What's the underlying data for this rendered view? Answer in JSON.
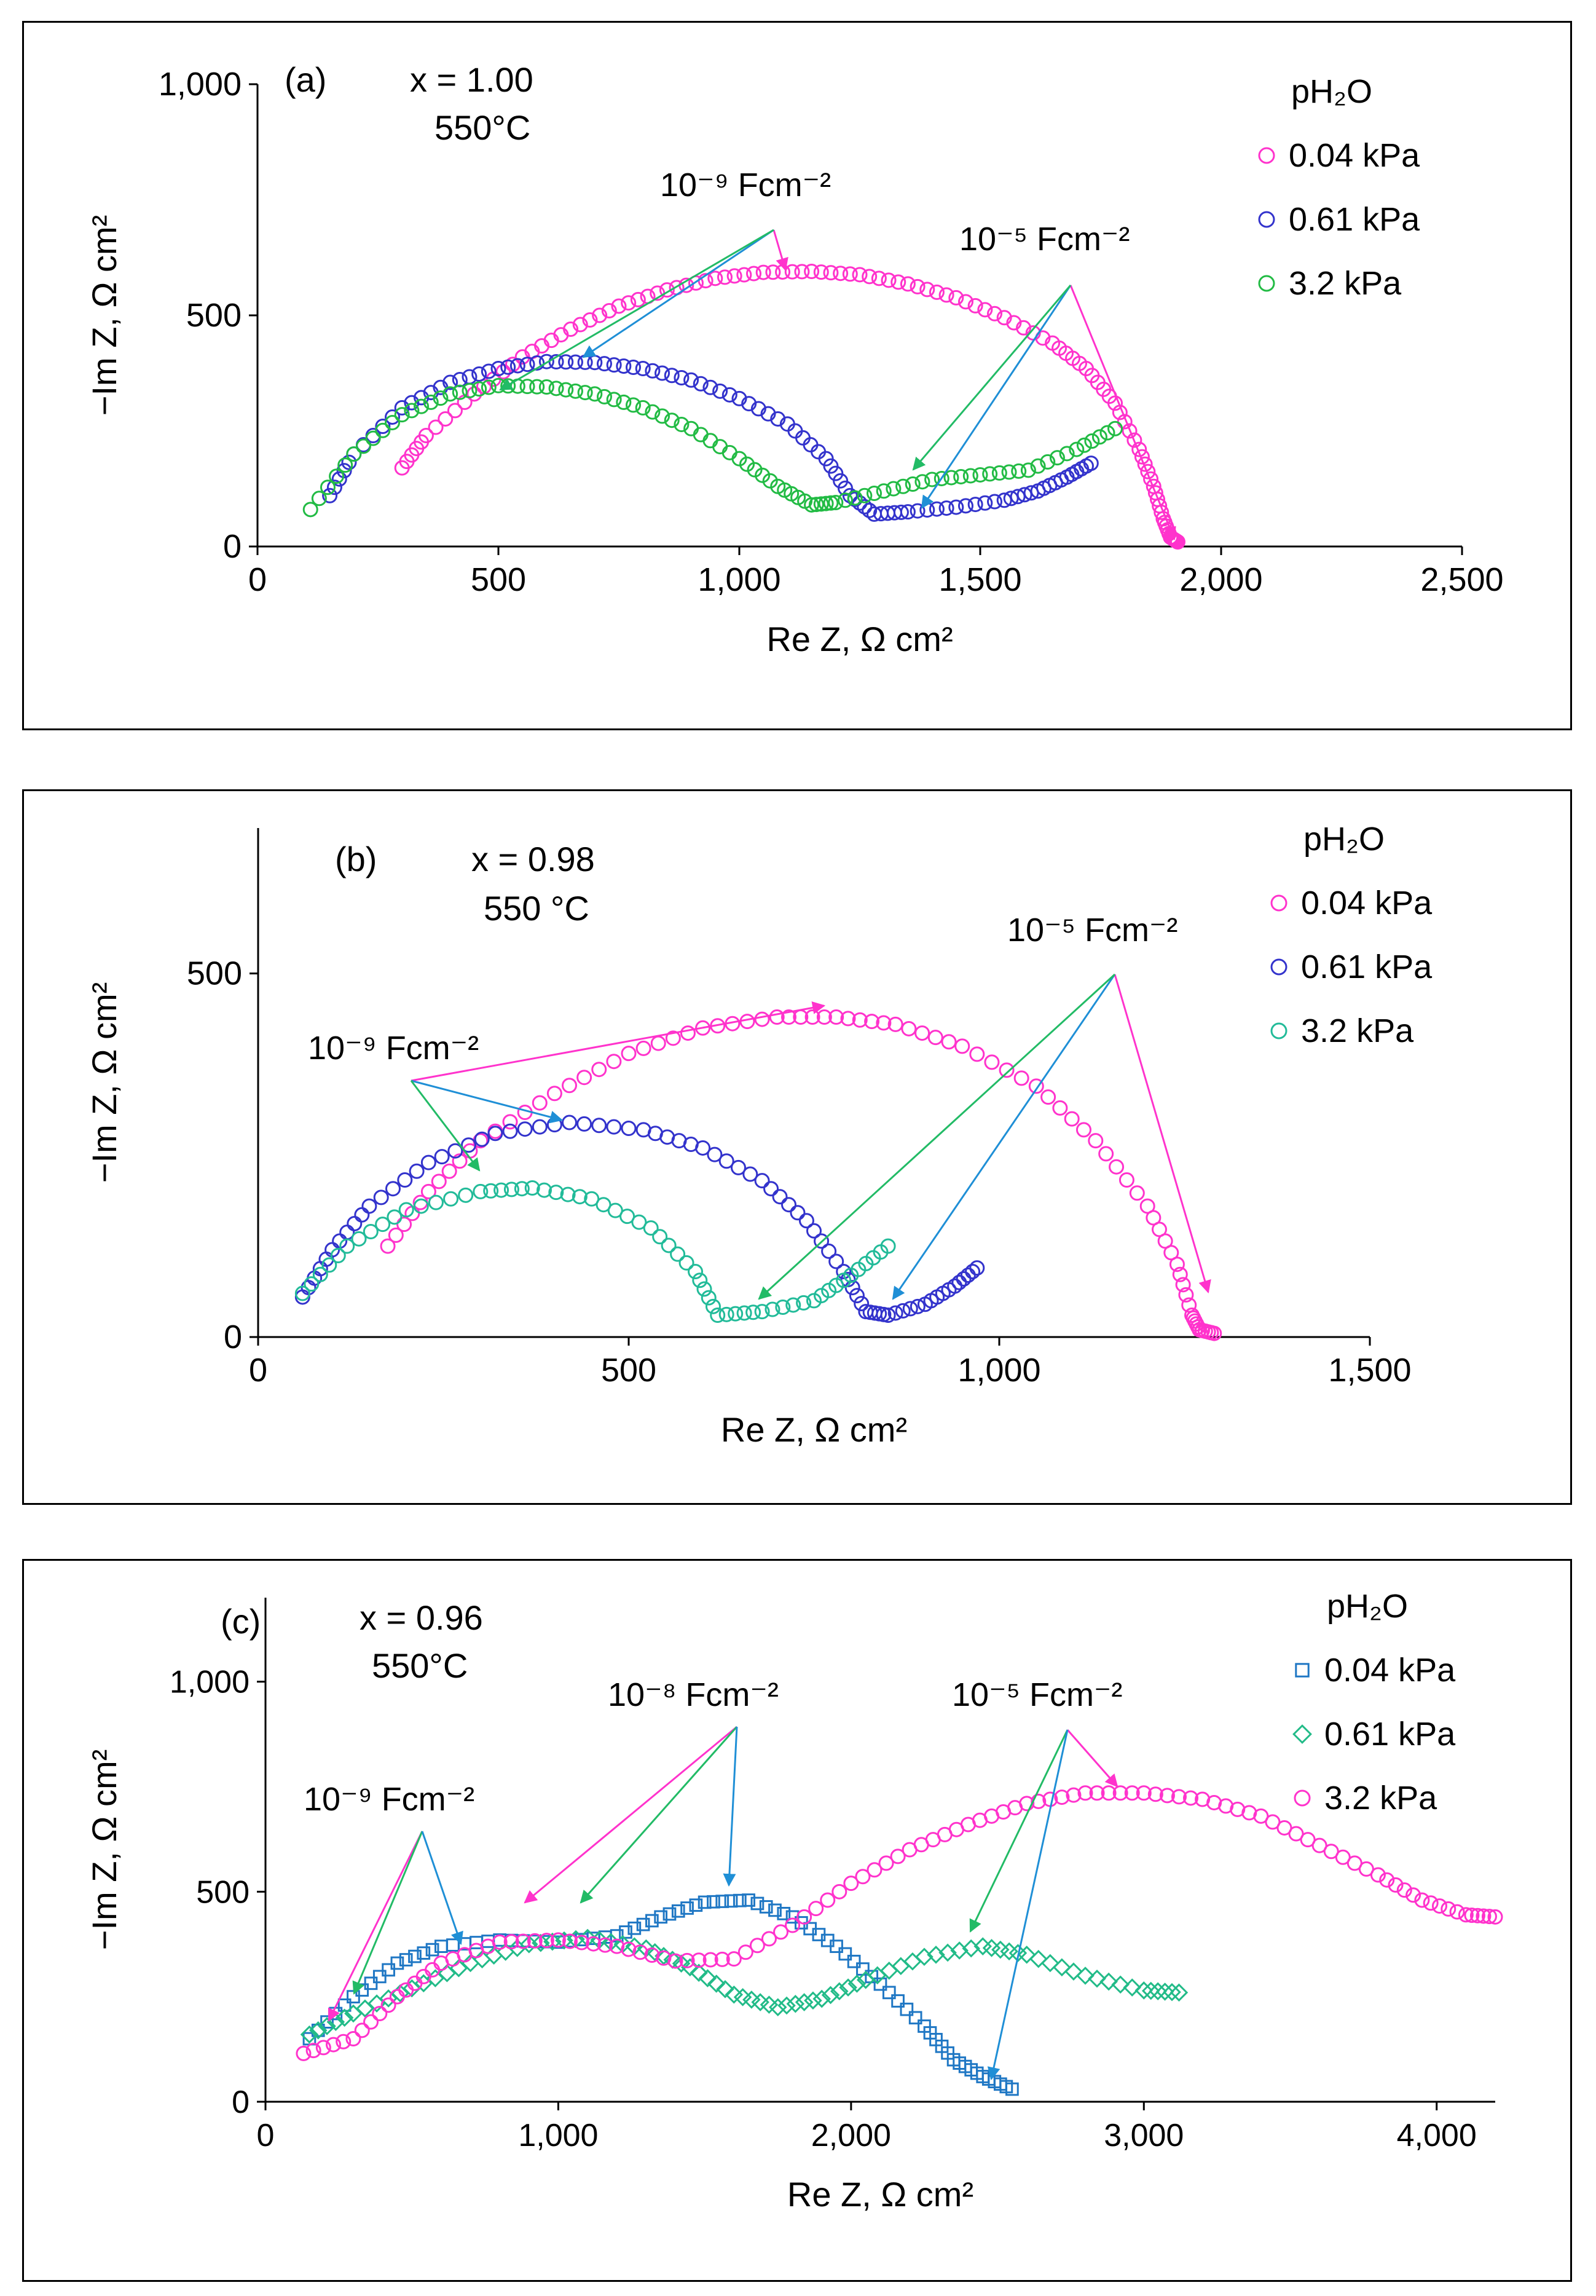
{
  "chart_data": [
    {
      "type": "scatter",
      "panel_label": "(a)",
      "annotations": [
        "x = 1.00",
        "550°C"
      ],
      "xlabel": "Re Z, Ω cm²",
      "ylabel": "−Im Z, Ω cm²",
      "xlim": [
        0,
        2500
      ],
      "ylim": [
        0,
        1000
      ],
      "xticks": [
        0,
        500,
        1000,
        1500,
        2000,
        2500
      ],
      "yticks": [
        0,
        500,
        1000
      ],
      "xtick_labels": [
        "0",
        "500",
        "1,000",
        "1,500",
        "2,000",
        "2,500"
      ],
      "ytick_labels": [
        "0",
        "500",
        "1,000"
      ],
      "grid": false,
      "legend_title": "pH₂O",
      "legend_position": "top-right",
      "series": [
        {
          "name": "0.04 kPa",
          "color": "#ff33cc",
          "marker": "circle",
          "points": [
            [
              300,
              170
            ],
            [
              350,
              240
            ],
            [
              450,
              330
            ],
            [
              550,
              410
            ],
            [
              650,
              470
            ],
            [
              750,
              520
            ],
            [
              850,
              555
            ],
            [
              950,
              580
            ],
            [
              1050,
              593
            ],
            [
              1150,
              595
            ],
            [
              1250,
              588
            ],
            [
              1350,
              568
            ],
            [
              1450,
              538
            ],
            [
              1550,
              495
            ],
            [
              1650,
              440
            ],
            [
              1720,
              385
            ],
            [
              1780,
              310
            ],
            [
              1830,
              210
            ],
            [
              1860,
              130
            ],
            [
              1880,
              60
            ],
            [
              1895,
              20
            ],
            [
              1910,
              10
            ]
          ]
        },
        {
          "name": "0.61 kPa",
          "color": "#3333cc",
          "marker": "circle",
          "points": [
            [
              150,
              110
            ],
            [
              200,
              200
            ],
            [
              300,
              300
            ],
            [
              400,
              355
            ],
            [
              500,
              385
            ],
            [
              600,
              400
            ],
            [
              700,
              398
            ],
            [
              800,
              385
            ],
            [
              900,
              360
            ],
            [
              1000,
              320
            ],
            [
              1100,
              265
            ],
            [
              1180,
              190
            ],
            [
              1230,
              110
            ],
            [
              1280,
              70
            ],
            [
              1350,
              75
            ],
            [
              1450,
              85
            ],
            [
              1550,
              100
            ],
            [
              1620,
              120
            ],
            [
              1680,
              150
            ],
            [
              1730,
              180
            ]
          ]
        },
        {
          "name": "3.2 kPa",
          "color": "#22bb44",
          "marker": "circle",
          "points": [
            [
              110,
              80
            ],
            [
              200,
              200
            ],
            [
              300,
              285
            ],
            [
              400,
              330
            ],
            [
              500,
              348
            ],
            [
              600,
              345
            ],
            [
              700,
              330
            ],
            [
              800,
              300
            ],
            [
              900,
              255
            ],
            [
              1000,
              190
            ],
            [
              1080,
              130
            ],
            [
              1150,
              90
            ],
            [
              1200,
              95
            ],
            [
              1300,
              120
            ],
            [
              1400,
              145
            ],
            [
              1500,
              155
            ],
            [
              1600,
              165
            ],
            [
              1700,
              210
            ],
            [
              1780,
              255
            ]
          ]
        }
      ],
      "arrow_labels": [
        "10⁻⁹ Fcm⁻²",
        "10⁻⁵ Fcm⁻²"
      ]
    },
    {
      "type": "scatter",
      "panel_label": "(b)",
      "annotations": [
        "x = 0.98",
        "550 °C"
      ],
      "xlabel": "Re Z, Ω cm²",
      "ylabel": "−Im Z, Ω cm²",
      "xlim": [
        0,
        1500
      ],
      "ylim": [
        0,
        700
      ],
      "xticks": [
        0,
        500,
        1000,
        1500
      ],
      "yticks": [
        0,
        500
      ],
      "xtick_labels": [
        "0",
        "500",
        "1,000",
        "1,500"
      ],
      "ytick_labels": [
        "0",
        "500"
      ],
      "grid": false,
      "legend_title": "pH₂O",
      "legend_position": "top-right",
      "series": [
        {
          "name": "0.04 kPa",
          "color": "#ff33cc",
          "marker": "circle",
          "points": [
            [
              175,
              125
            ],
            [
              230,
              200
            ],
            [
              300,
              270
            ],
            [
              400,
              335
            ],
            [
              500,
              390
            ],
            [
              600,
              425
            ],
            [
              700,
              440
            ],
            [
              780,
              440
            ],
            [
              860,
              430
            ],
            [
              950,
              400
            ],
            [
              1050,
              345
            ],
            [
              1130,
              270
            ],
            [
              1200,
              180
            ],
            [
              1240,
              100
            ],
            [
              1260,
              30
            ],
            [
              1270,
              10
            ],
            [
              1290,
              5
            ]
          ]
        },
        {
          "name": "0.61 kPa",
          "color": "#3333cc",
          "marker": "circle",
          "points": [
            [
              60,
              55
            ],
            [
              100,
              120
            ],
            [
              150,
              180
            ],
            [
              230,
              240
            ],
            [
              320,
              280
            ],
            [
              420,
              295
            ],
            [
              520,
              285
            ],
            [
              600,
              260
            ],
            [
              680,
              215
            ],
            [
              740,
              160
            ],
            [
              790,
              90
            ],
            [
              820,
              35
            ],
            [
              850,
              30
            ],
            [
              900,
              45
            ],
            [
              940,
              70
            ],
            [
              970,
              95
            ]
          ]
        },
        {
          "name": "3.2 kPa",
          "color": "#22bb99",
          "marker": "circle",
          "points": [
            [
              60,
              60
            ],
            [
              120,
              125
            ],
            [
              200,
              175
            ],
            [
              300,
              200
            ],
            [
              370,
              205
            ],
            [
              450,
              190
            ],
            [
              530,
              150
            ],
            [
              590,
              90
            ],
            [
              620,
              30
            ],
            [
              680,
              35
            ],
            [
              750,
              50
            ],
            [
              800,
              85
            ],
            [
              850,
              125
            ]
          ]
        }
      ],
      "arrow_labels": [
        "10⁻⁹ Fcm⁻²",
        "10⁻⁵ Fcm⁻²"
      ]
    },
    {
      "type": "scatter",
      "panel_label": "(c)",
      "annotations": [
        "x = 0.96",
        "550°C"
      ],
      "xlabel": "Re Z, Ω cm²",
      "ylabel": "−Im Z, Ω cm²",
      "xlim": [
        0,
        4200
      ],
      "ylim": [
        0,
        1200
      ],
      "xticks": [
        0,
        1000,
        2000,
        3000,
        4000
      ],
      "yticks": [
        0,
        500,
        1000
      ],
      "xtick_labels": [
        "0",
        "1,000",
        "2,000",
        "3,000",
        "4,000"
      ],
      "ytick_labels": [
        "0",
        "500",
        "1,000"
      ],
      "grid": false,
      "legend_title": "pH₂O",
      "legend_position": "top-right",
      "series": [
        {
          "name": "0.04 kPa",
          "color": "#1f77c4",
          "marker": "square",
          "points": [
            [
              150,
              150
            ],
            [
              300,
              250
            ],
            [
              450,
              330
            ],
            [
              600,
              370
            ],
            [
              800,
              385
            ],
            [
              1000,
              380
            ],
            [
              1200,
              395
            ],
            [
              1350,
              440
            ],
            [
              1500,
              475
            ],
            [
              1650,
              480
            ],
            [
              1800,
              440
            ],
            [
              1950,
              370
            ],
            [
              2100,
              280
            ],
            [
              2250,
              180
            ],
            [
              2350,
              100
            ],
            [
              2450,
              60
            ],
            [
              2550,
              30
            ]
          ]
        },
        {
          "name": "0.61 kPa",
          "color": "#22bb88",
          "marker": "diamond",
          "points": [
            [
              150,
              160
            ],
            [
              300,
              210
            ],
            [
              500,
              270
            ],
            [
              700,
              330
            ],
            [
              900,
              375
            ],
            [
              1100,
              390
            ],
            [
              1300,
              365
            ],
            [
              1450,
              320
            ],
            [
              1600,
              255
            ],
            [
              1750,
              225
            ],
            [
              1900,
              245
            ],
            [
              2050,
              290
            ],
            [
              2250,
              345
            ],
            [
              2450,
              370
            ],
            [
              2600,
              350
            ],
            [
              2800,
              300
            ],
            [
              3000,
              265
            ],
            [
              3120,
              260
            ]
          ]
        },
        {
          "name": "3.2 kPa",
          "color": "#ff33cc",
          "marker": "circle",
          "points": [
            [
              130,
              115
            ],
            [
              300,
              150
            ],
            [
              450,
              250
            ],
            [
              600,
              330
            ],
            [
              800,
              380
            ],
            [
              1000,
              385
            ],
            [
              1200,
              370
            ],
            [
              1400,
              335
            ],
            [
              1600,
              340
            ],
            [
              1800,
              420
            ],
            [
              2000,
              520
            ],
            [
              2200,
              600
            ],
            [
              2400,
              660
            ],
            [
              2600,
              710
            ],
            [
              2800,
              735
            ],
            [
              3000,
              735
            ],
            [
              3200,
              720
            ],
            [
              3400,
              680
            ],
            [
              3600,
              610
            ],
            [
              3800,
              540
            ],
            [
              3950,
              480
            ],
            [
              4100,
              445
            ],
            [
              4200,
              440
            ]
          ]
        }
      ],
      "arrow_labels": [
        "10⁻⁹ Fcm⁻²",
        "10⁻⁸ Fcm⁻²",
        "10⁻⁵ Fcm⁻²"
      ]
    }
  ]
}
